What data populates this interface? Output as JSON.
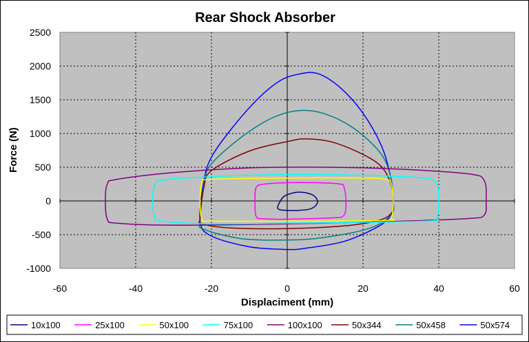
{
  "chart_data": {
    "type": "line",
    "title": "Rear Shock Absorber",
    "xlabel": "Displaciment (mm)",
    "ylabel": "Force (N)",
    "xlim": [
      -60,
      60
    ],
    "ylim": [
      -1000,
      2500
    ],
    "xticks": [
      -60,
      -40,
      -20,
      0,
      20,
      40,
      60
    ],
    "yticks": [
      -1000,
      -500,
      0,
      500,
      1000,
      1500,
      2000,
      2500
    ],
    "xtick_labels": [
      "-60",
      "-40",
      "-20",
      "0",
      "20",
      "40",
      "60"
    ],
    "ytick_labels": [
      "-1000",
      "-500",
      "0",
      "500",
      "1000",
      "1500",
      "2000",
      "2500"
    ],
    "grid": true,
    "plot_background": "#c0c0c0",
    "legend_position": "bottom",
    "series": [
      {
        "name": "10x100",
        "color": "#000080",
        "loop": [
          [
            -2.5,
            -80
          ],
          [
            -1,
            60
          ],
          [
            1,
            110
          ],
          [
            3,
            130
          ],
          [
            5,
            120
          ],
          [
            7,
            80
          ],
          [
            8,
            0
          ],
          [
            7.5,
            -70
          ],
          [
            6,
            -120
          ],
          [
            3,
            -140
          ],
          [
            0,
            -140
          ],
          [
            -2,
            -130
          ],
          [
            -2.5,
            -80
          ]
        ]
      },
      {
        "name": "25x100",
        "color": "#ff00ff",
        "loop": [
          [
            -8.5,
            0
          ],
          [
            -8.2,
            200
          ],
          [
            -6,
            250
          ],
          [
            0,
            270
          ],
          [
            8,
            270
          ],
          [
            14,
            250
          ],
          [
            15,
            200
          ],
          [
            15.5,
            0
          ],
          [
            15,
            -210
          ],
          [
            12,
            -250
          ],
          [
            0,
            -270
          ],
          [
            -6,
            -265
          ],
          [
            -8.2,
            -230
          ],
          [
            -8.5,
            0
          ]
        ]
      },
      {
        "name": "50x100",
        "color": "#ffff00",
        "loop": [
          [
            -23,
            0
          ],
          [
            -22.5,
            270
          ],
          [
            -20,
            320
          ],
          [
            0,
            340
          ],
          [
            20,
            340
          ],
          [
            26,
            320
          ],
          [
            27.5,
            250
          ],
          [
            28,
            0
          ],
          [
            27.5,
            -250
          ],
          [
            26,
            -290
          ],
          [
            0,
            -300
          ],
          [
            -20,
            -300
          ],
          [
            -22.5,
            -270
          ],
          [
            -23,
            0
          ]
        ]
      },
      {
        "name": "75x100",
        "color": "#00ffff",
        "loop": [
          [
            -35.5,
            0
          ],
          [
            -35,
            230
          ],
          [
            -33,
            310
          ],
          [
            -20,
            360
          ],
          [
            0,
            390
          ],
          [
            20,
            380
          ],
          [
            36,
            340
          ],
          [
            39.5,
            250
          ],
          [
            40,
            0
          ],
          [
            39.5,
            -230
          ],
          [
            36,
            -300
          ],
          [
            0,
            -330
          ],
          [
            -20,
            -340
          ],
          [
            -33,
            -300
          ],
          [
            -35,
            -230
          ],
          [
            -35.5,
            0
          ]
        ]
      },
      {
        "name": "100x100",
        "color": "#800080",
        "loop": [
          [
            -48,
            0
          ],
          [
            -47.5,
            250
          ],
          [
            -45,
            320
          ],
          [
            -30,
            420
          ],
          [
            -10,
            490
          ],
          [
            10,
            500
          ],
          [
            30,
            470
          ],
          [
            48,
            400
          ],
          [
            52,
            300
          ],
          [
            52.5,
            0
          ],
          [
            52,
            -210
          ],
          [
            48,
            -260
          ],
          [
            30,
            -300
          ],
          [
            0,
            -340
          ],
          [
            -30,
            -360
          ],
          [
            -45,
            -330
          ],
          [
            -47.5,
            -270
          ],
          [
            -48,
            0
          ]
        ]
      },
      {
        "name": "50x344",
        "color": "#800000",
        "loop": [
          [
            -23,
            -250
          ],
          [
            -22,
            200
          ],
          [
            -20,
            450
          ],
          [
            -10,
            740
          ],
          [
            0,
            880
          ],
          [
            5,
            920
          ],
          [
            12,
            870
          ],
          [
            20,
            690
          ],
          [
            25,
            500
          ],
          [
            27.5,
            230
          ],
          [
            28,
            0
          ],
          [
            27.5,
            -180
          ],
          [
            24,
            -290
          ],
          [
            15,
            -370
          ],
          [
            0,
            -410
          ],
          [
            -15,
            -400
          ],
          [
            -22.5,
            -340
          ],
          [
            -23,
            -250
          ]
        ]
      },
      {
        "name": "50x458",
        "color": "#008080",
        "loop": [
          [
            -23,
            -300
          ],
          [
            -22,
            250
          ],
          [
            -20,
            550
          ],
          [
            -12,
            950
          ],
          [
            -4,
            1230
          ],
          [
            3,
            1340
          ],
          [
            10,
            1290
          ],
          [
            18,
            1060
          ],
          [
            25,
            680
          ],
          [
            27.5,
            300
          ],
          [
            28,
            0
          ],
          [
            27.5,
            -200
          ],
          [
            22,
            -400
          ],
          [
            10,
            -540
          ],
          [
            0,
            -580
          ],
          [
            -12,
            -560
          ],
          [
            -22,
            -420
          ],
          [
            -23,
            -300
          ]
        ]
      },
      {
        "name": "50x574",
        "color": "#0000ff",
        "loop": [
          [
            -23,
            -300
          ],
          [
            -22,
            300
          ],
          [
            -20,
            650
          ],
          [
            -15,
            1050
          ],
          [
            -8,
            1500
          ],
          [
            -2,
            1780
          ],
          [
            3,
            1880
          ],
          [
            8,
            1890
          ],
          [
            14,
            1680
          ],
          [
            20,
            1300
          ],
          [
            25,
            800
          ],
          [
            27.5,
            300
          ],
          [
            28,
            0
          ],
          [
            27.5,
            -200
          ],
          [
            24,
            -380
          ],
          [
            15,
            -600
          ],
          [
            5,
            -700
          ],
          [
            0,
            -720
          ],
          [
            -10,
            -680
          ],
          [
            -20,
            -520
          ],
          [
            -23,
            -300
          ]
        ]
      }
    ]
  }
}
